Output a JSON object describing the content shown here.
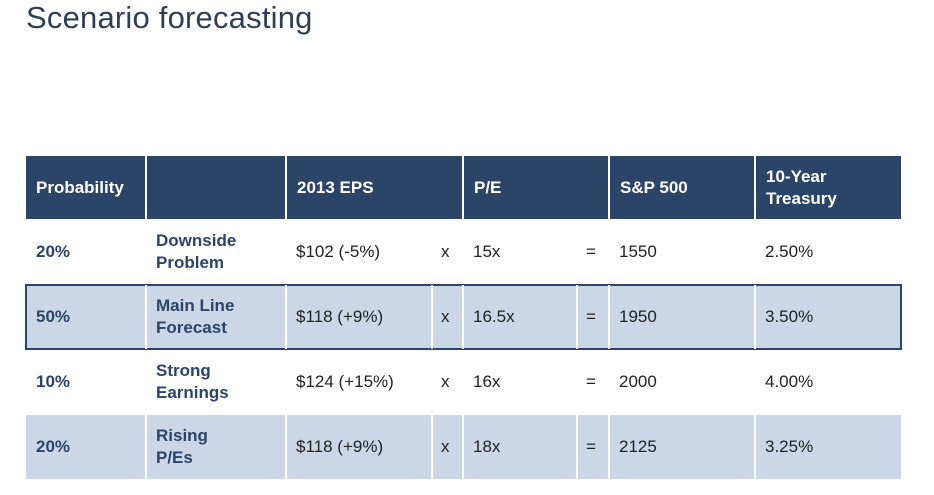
{
  "title": "Scenario forecasting",
  "table": {
    "headers": {
      "probability": "Probability",
      "scenario": "",
      "eps": "2013 EPS",
      "pe": "P/E",
      "sp500": "S&P 500",
      "treasury_line1": "10-Year",
      "treasury_line2": "Treasury"
    },
    "rows": [
      {
        "probability": "20%",
        "scenario_line1": "Downside",
        "scenario_line2": "Problem",
        "eps": "$102 (-5%)",
        "times": "x",
        "pe": "15x",
        "equals": "=",
        "sp500": "1550",
        "treasury": "2.50%"
      },
      {
        "probability": "50%",
        "scenario_line1": "Main Line",
        "scenario_line2": "Forecast",
        "eps": "$118 (+9%)",
        "times": "x",
        "pe": "16.5x",
        "equals": "=",
        "sp500": "1950",
        "treasury": "3.50%"
      },
      {
        "probability": "10%",
        "scenario_line1": "Strong",
        "scenario_line2": "Earnings",
        "eps": "$124 (+15%)",
        "times": "x",
        "pe": "16x",
        "equals": "=",
        "sp500": "2000",
        "treasury": "4.00%"
      },
      {
        "probability": "20%",
        "scenario_line1": "Rising",
        "scenario_line2": "P/Es",
        "eps": "$118 (+9%)",
        "times": "x",
        "pe": "18x",
        "equals": "=",
        "sp500": "2125",
        "treasury": "3.25%"
      }
    ]
  },
  "colors": {
    "header_bg": "#2b4467",
    "shaded_row": "#cbd7e6",
    "title_text": "#2e3e55"
  }
}
